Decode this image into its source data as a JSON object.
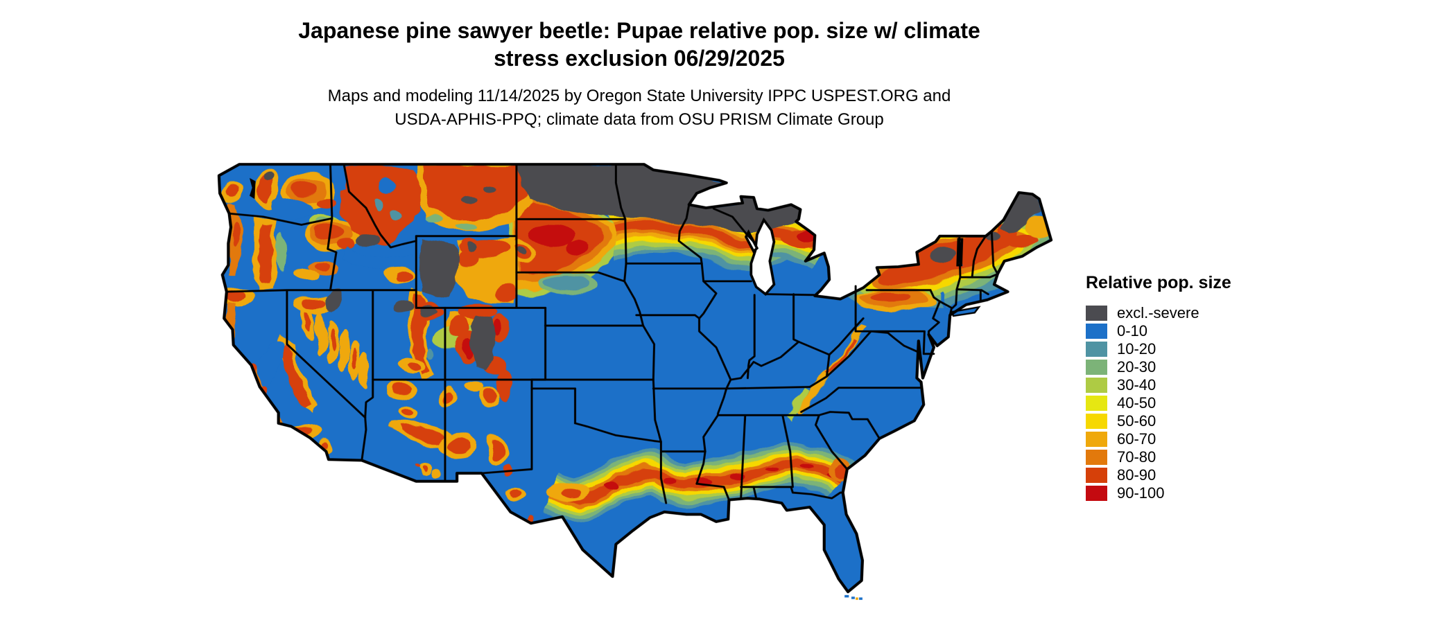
{
  "header": {
    "title": "Japanese pine sawyer beetle: Pupae relative pop. size w/ climate stress exclusion 06/29/2025",
    "title_lines": [
      "Japanese pine sawyer beetle: Pupae relative pop. size w/ climate",
      "stress exclusion 06/29/2025"
    ],
    "subtitle_lines": [
      "Maps and modeling 11/14/2025 by Oregon State University IPPC USPEST.ORG and",
      "USDA-APHIS-PPQ; climate data from OSU PRISM Climate Group"
    ]
  },
  "legend": {
    "title": "Relative pop. size",
    "items": [
      {
        "label": "excl.-severe",
        "color": "#4b4b50"
      },
      {
        "label": "0-10",
        "color": "#1c70c8"
      },
      {
        "label": "10-20",
        "color": "#4f93a3"
      },
      {
        "label": "20-30",
        "color": "#7cb378"
      },
      {
        "label": "30-40",
        "color": "#aecb44"
      },
      {
        "label": "40-50",
        "color": "#e6e712"
      },
      {
        "label": "50-60",
        "color": "#f6d800"
      },
      {
        "label": "60-70",
        "color": "#efa80b"
      },
      {
        "label": "70-80",
        "color": "#e2790c"
      },
      {
        "label": "80-90",
        "color": "#d64009"
      },
      {
        "label": "90-100",
        "color": "#c40a10"
      }
    ]
  },
  "map": {
    "region": "Conterminous United States",
    "type": "raster choropleth of relative population size with state boundaries",
    "background_color": "#ffffff",
    "state_border_color": "#000000",
    "water_color": "#ffffff"
  }
}
